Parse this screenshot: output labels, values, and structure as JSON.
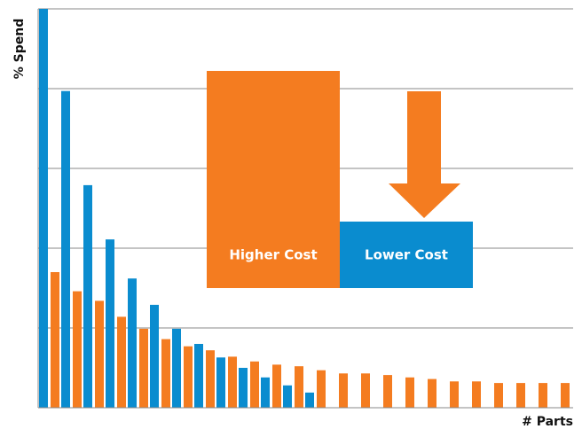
{
  "chart_data": {
    "type": "bar",
    "y_label": "% Spend",
    "x_label": "# Parts",
    "annotations": [
      "Higher Cost",
      "Lower Cost"
    ],
    "ylim": [
      0,
      5
    ],
    "gridlines": [
      1,
      2,
      3,
      4,
      5
    ],
    "grid": true,
    "series": [
      {
        "color": "#0a8ccf",
        "values": [
          5.0,
          3.97,
          2.79,
          2.11,
          1.62,
          1.29,
          0.99,
          0.8,
          0.63,
          0.5,
          0.38,
          0.28,
          0.19,
          null,
          null,
          null,
          null,
          null,
          null,
          null,
          null,
          null,
          null,
          null
        ]
      },
      {
        "color": "#f47c20",
        "values": [
          1.7,
          1.46,
          1.34,
          1.14,
          0.99,
          0.86,
          0.77,
          0.72,
          0.64,
          0.58,
          0.54,
          0.52,
          0.47,
          0.43,
          0.43,
          0.41,
          0.38,
          0.36,
          0.33,
          0.33,
          0.31,
          0.31,
          0.31,
          0.31
        ]
      }
    ]
  }
}
